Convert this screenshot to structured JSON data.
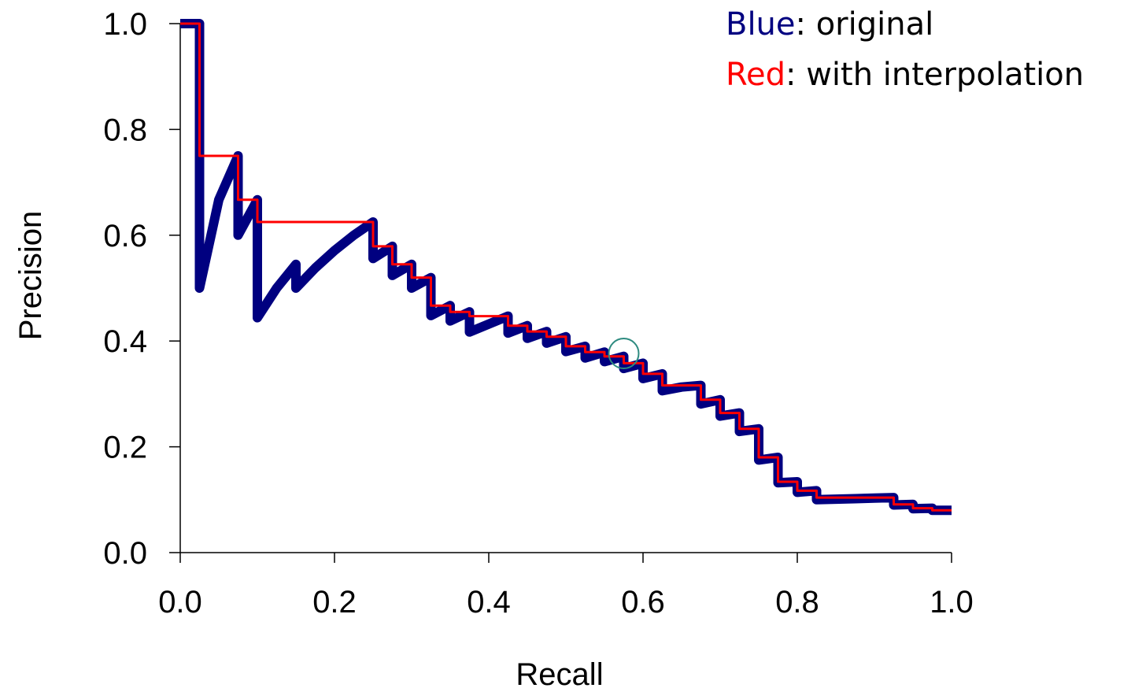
{
  "colors": {
    "original": "#000080",
    "interpolated": "#ff0000",
    "highlight_circle": "#2e8b80",
    "axis": "#000000"
  },
  "legend": {
    "blue_word": "Blue",
    "blue_rest": ": original",
    "red_word": "Red",
    "red_rest": ": with interpolation"
  },
  "chart_data": {
    "type": "line",
    "xlabel": "Recall",
    "ylabel": "Precision",
    "xlim": [
      0,
      1
    ],
    "ylim": [
      0,
      1
    ],
    "xticks": [
      "0.0",
      "0.2",
      "0.4",
      "0.6",
      "0.8",
      "1.0"
    ],
    "yticks": [
      "0.0",
      "0.2",
      "0.4",
      "0.6",
      "0.8",
      "1.0"
    ],
    "grid": false,
    "legend_position": "top-right",
    "series": [
      {
        "name": "original",
        "x": [
          0.0,
          0.025,
          0.025,
          0.025,
          0.05,
          0.075,
          0.075,
          0.1,
          0.1,
          0.125,
          0.15,
          0.15,
          0.175,
          0.2,
          0.225,
          0.25,
          0.25,
          0.275,
          0.275,
          0.3,
          0.3,
          0.325,
          0.325,
          0.35,
          0.35,
          0.375,
          0.375,
          0.4,
          0.425,
          0.425,
          0.45,
          0.45,
          0.475,
          0.475,
          0.5,
          0.5,
          0.525,
          0.525,
          0.55,
          0.55,
          0.575,
          0.575,
          0.6,
          0.6,
          0.625,
          0.625,
          0.65,
          0.675,
          0.675,
          0.7,
          0.7,
          0.725,
          0.725,
          0.75,
          0.75,
          0.775,
          0.775,
          0.8,
          0.8,
          0.825,
          0.825,
          0.85,
          0.875,
          0.9,
          0.925,
          0.925,
          0.95,
          0.95,
          0.975,
          0.975,
          1.0
        ],
        "y": [
          1.0,
          1.0,
          1.0,
          0.5,
          0.667,
          0.75,
          0.6,
          0.667,
          0.444,
          0.5,
          0.545,
          0.5,
          0.538,
          0.571,
          0.6,
          0.625,
          0.556,
          0.579,
          0.524,
          0.545,
          0.5,
          0.52,
          0.448,
          0.467,
          0.438,
          0.455,
          0.417,
          0.432,
          0.447,
          0.415,
          0.429,
          0.405,
          0.418,
          0.396,
          0.408,
          0.38,
          0.39,
          0.368,
          0.379,
          0.361,
          0.371,
          0.348,
          0.358,
          0.329,
          0.338,
          0.306,
          0.313,
          0.316,
          0.281,
          0.289,
          0.258,
          0.264,
          0.229,
          0.234,
          0.175,
          0.18,
          0.132,
          0.134,
          0.114,
          0.117,
          0.1,
          0.101,
          0.102,
          0.103,
          0.104,
          0.09,
          0.091,
          0.083,
          0.084,
          0.08,
          0.08
        ]
      },
      {
        "name": "with interpolation",
        "x": [
          0.0,
          0.025,
          0.025,
          0.075,
          0.075,
          0.1,
          0.1,
          0.25,
          0.25,
          0.275,
          0.275,
          0.3,
          0.3,
          0.325,
          0.325,
          0.35,
          0.35,
          0.375,
          0.375,
          0.425,
          0.425,
          0.45,
          0.45,
          0.475,
          0.475,
          0.5,
          0.5,
          0.525,
          0.525,
          0.55,
          0.55,
          0.575,
          0.575,
          0.6,
          0.6,
          0.625,
          0.625,
          0.675,
          0.675,
          0.7,
          0.7,
          0.725,
          0.725,
          0.75,
          0.75,
          0.775,
          0.775,
          0.8,
          0.8,
          0.825,
          0.825,
          0.925,
          0.925,
          0.95,
          0.95,
          0.975,
          0.975,
          1.0
        ],
        "y": [
          1.0,
          1.0,
          0.75,
          0.75,
          0.667,
          0.667,
          0.625,
          0.625,
          0.579,
          0.579,
          0.545,
          0.545,
          0.52,
          0.52,
          0.467,
          0.467,
          0.455,
          0.455,
          0.447,
          0.447,
          0.429,
          0.429,
          0.418,
          0.418,
          0.408,
          0.408,
          0.39,
          0.39,
          0.379,
          0.379,
          0.371,
          0.371,
          0.358,
          0.358,
          0.338,
          0.338,
          0.316,
          0.316,
          0.289,
          0.289,
          0.264,
          0.264,
          0.234,
          0.234,
          0.18,
          0.18,
          0.134,
          0.134,
          0.117,
          0.117,
          0.104,
          0.104,
          0.091,
          0.091,
          0.084,
          0.084,
          0.08,
          0.08
        ]
      }
    ],
    "annotations": [
      {
        "type": "circle",
        "x": 0.575,
        "y": 0.375
      }
    ]
  }
}
